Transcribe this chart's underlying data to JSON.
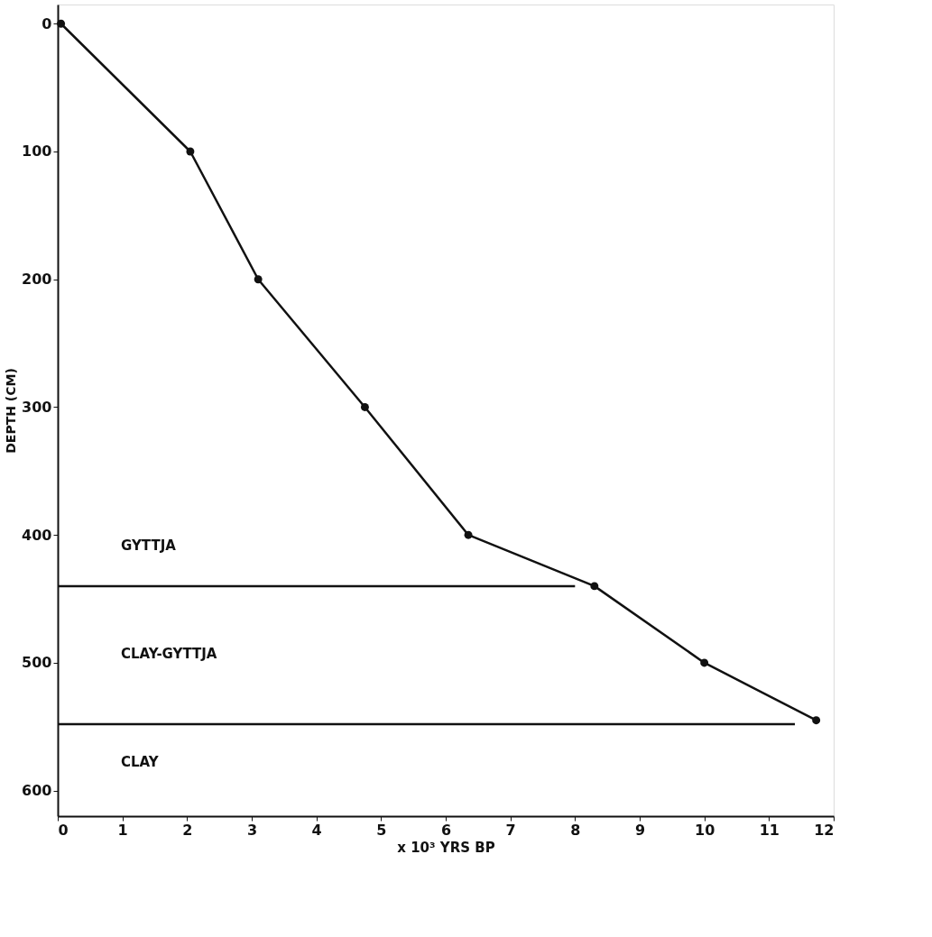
{
  "chart_data": {
    "type": "line",
    "xlabel": "x 10³ YRS BP",
    "ylabel": "DEPTH (CM)",
    "xlim": [
      0,
      12
    ],
    "xticks": [
      0,
      1,
      2,
      3,
      4,
      5,
      6,
      7,
      8,
      9,
      10,
      11,
      12
    ],
    "ylim": [
      620,
      -15
    ],
    "yticks": [
      0,
      100,
      200,
      300,
      400,
      500,
      600
    ],
    "grid": false,
    "marker": "circle",
    "line_style": "solid",
    "series": [
      {
        "color": "#111111",
        "x": [
          0.05,
          2.05,
          3.1,
          4.75,
          6.35,
          8.3,
          10.0,
          11.73
        ],
        "values": [
          0,
          100,
          200,
          300,
          400,
          440,
          500,
          545
        ]
      },
      {
        "color": "#111111",
        "type": "line",
        "marker": "none",
        "x": [
          0,
          8.0
        ],
        "values": [
          440,
          440
        ]
      },
      {
        "color": "#111111",
        "type": "line",
        "marker": "none",
        "x": [
          0,
          11.4
        ],
        "values": [
          548,
          548
        ]
      }
    ],
    "annotations": [
      "GYTTJA",
      "CLAY-GYTTJA",
      "CLAY"
    ]
  }
}
